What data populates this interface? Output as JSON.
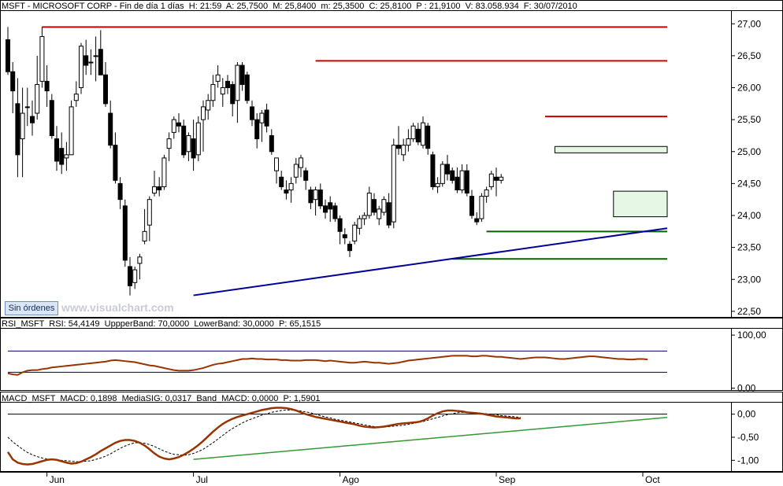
{
  "main_header": "MSFT - MICROSOFT CORP - Fin de día 1 días  H: 21:59  A: 25,7500  M: 25,8400  m: 25,3500  C: 25,8100  P : 21,9100  V: 83.058.934  F: 30/07/2010",
  "rsi_header": "RSI_MSFT  RSI: 54,4149  UppperBand: 70,0000  LowerBand: 30,0000  P: 65,1515",
  "macd_header": "MACD_MSFT  MACD: 0,1898  MediaSIG: 0,0317  Band_MACD: 0,0000  P: 1,5901",
  "button_label": "Sin órdenes",
  "watermark": "www.visualchart.com",
  "colors": {
    "up_candle": "#ffffff",
    "down_candle": "#000000",
    "resistance": "#cc0000",
    "support": "#006600",
    "trendline": "#000099",
    "rsi_line": "#993300",
    "macd_line": "#993300",
    "signal_line": "#000000",
    "macd_trend": "#339933",
    "zone_fill": "#e6f7e6"
  },
  "chart_data": [
    {
      "type": "candlestick",
      "name": "MSFT daily",
      "ylim": [
        22.4,
        27.2
      ],
      "y_ticks": [
        "27,00",
        "26,50",
        "26,00",
        "25,50",
        "25,00",
        "24,50",
        "24,00",
        "23,50",
        "23,00",
        "22,50"
      ],
      "y_tick_values": [
        27.0,
        26.5,
        26.0,
        25.5,
        25.0,
        24.5,
        24.0,
        23.5,
        23.0,
        22.5
      ],
      "x_labels": [
        {
          "label": "Jun",
          "index": 8
        },
        {
          "label": "Jul",
          "index": 38
        },
        {
          "label": "Ago",
          "index": 68
        },
        {
          "label": "Sep",
          "index": 100
        },
        {
          "label": "Oct",
          "index": 130
        }
      ],
      "candles": [
        [
          26.75,
          26.95,
          26.2,
          26.25
        ],
        [
          26.25,
          26.4,
          25.6,
          25.95
        ],
        [
          25.75,
          26.15,
          24.6,
          24.95
        ],
        [
          25.2,
          26.0,
          24.6,
          25.6
        ],
        [
          25.7,
          26.0,
          25.4,
          25.7
        ],
        [
          25.55,
          25.8,
          25.25,
          25.45
        ],
        [
          25.6,
          26.5,
          25.5,
          26.05
        ],
        [
          26.1,
          26.95,
          26.0,
          26.8
        ],
        [
          26.1,
          26.35,
          25.7,
          25.95
        ],
        [
          25.8,
          25.9,
          25.2,
          25.25
        ],
        [
          25.2,
          25.4,
          24.7,
          24.85
        ],
        [
          25.05,
          25.3,
          24.65,
          24.8
        ],
        [
          24.9,
          25.15,
          24.7,
          24.95
        ],
        [
          24.95,
          25.8,
          24.95,
          25.7
        ],
        [
          25.8,
          26.1,
          25.7,
          25.9
        ],
        [
          26.0,
          26.7,
          25.9,
          26.65
        ],
        [
          26.5,
          26.75,
          26.2,
          26.35
        ],
        [
          26.4,
          26.6,
          26.2,
          26.4
        ],
        [
          26.5,
          26.8,
          26.1,
          26.5
        ],
        [
          26.6,
          26.9,
          26.2,
          26.2
        ],
        [
          26.2,
          26.4,
          25.7,
          25.75
        ],
        [
          25.6,
          25.8,
          25.05,
          25.1
        ],
        [
          25.1,
          25.3,
          24.5,
          24.55
        ],
        [
          24.5,
          24.6,
          24.1,
          24.25
        ],
        [
          24.15,
          24.25,
          23.2,
          23.3
        ],
        [
          23.2,
          23.35,
          22.75,
          22.9
        ],
        [
          22.95,
          23.2,
          22.85,
          23.15
        ],
        [
          23.25,
          23.4,
          23.0,
          23.35
        ],
        [
          23.6,
          24.1,
          23.55,
          23.75
        ],
        [
          23.85,
          24.3,
          23.6,
          24.25
        ],
        [
          24.35,
          24.7,
          24.3,
          24.45
        ],
        [
          24.45,
          24.6,
          24.3,
          24.4
        ],
        [
          24.45,
          24.95,
          24.4,
          24.9
        ],
        [
          25.05,
          25.3,
          24.85,
          25.2
        ],
        [
          25.3,
          25.55,
          25.2,
          25.5
        ],
        [
          25.45,
          25.6,
          25.3,
          25.4
        ],
        [
          25.4,
          25.5,
          24.9,
          24.95
        ],
        [
          25.0,
          25.3,
          24.85,
          25.25
        ],
        [
          25.2,
          25.5,
          24.7,
          24.9
        ],
        [
          24.95,
          25.55,
          24.85,
          25.45
        ],
        [
          25.5,
          25.8,
          25.0,
          25.7
        ],
        [
          25.65,
          25.9,
          25.5,
          25.8
        ],
        [
          25.8,
          26.2,
          25.7,
          26.05
        ],
        [
          26.1,
          26.35,
          26.0,
          26.2
        ],
        [
          25.9,
          26.15,
          25.7,
          26.0
        ],
        [
          26.1,
          26.2,
          25.9,
          26.0
        ],
        [
          26.05,
          26.1,
          25.55,
          25.75
        ],
        [
          25.8,
          26.4,
          25.45,
          26.35
        ],
        [
          26.35,
          26.4,
          25.95,
          26.05
        ],
        [
          26.2,
          26.25,
          25.75,
          25.8
        ],
        [
          25.7,
          25.8,
          25.4,
          25.5
        ],
        [
          25.5,
          25.6,
          25.05,
          25.2
        ],
        [
          25.45,
          25.65,
          25.15,
          25.6
        ],
        [
          25.65,
          25.75,
          25.3,
          25.4
        ],
        [
          25.25,
          25.35,
          24.95,
          25.0
        ],
        [
          24.7,
          24.9,
          24.5,
          24.9
        ],
        [
          24.6,
          24.7,
          24.4,
          24.45
        ],
        [
          24.4,
          24.55,
          24.25,
          24.35
        ],
        [
          24.4,
          24.6,
          24.2,
          24.5
        ],
        [
          24.6,
          24.9,
          24.5,
          24.8
        ],
        [
          24.75,
          24.95,
          24.6,
          24.9
        ],
        [
          24.7,
          24.75,
          24.4,
          24.55
        ],
        [
          24.4,
          24.45,
          24.1,
          24.2
        ],
        [
          24.25,
          24.45,
          24.0,
          24.4
        ],
        [
          24.4,
          24.5,
          24.1,
          24.15
        ],
        [
          24.15,
          24.25,
          23.95,
          24.05
        ],
        [
          24.2,
          24.3,
          23.9,
          24.1
        ],
        [
          24.15,
          24.2,
          23.9,
          23.95
        ],
        [
          23.95,
          24.0,
          23.55,
          23.75
        ],
        [
          23.7,
          23.8,
          23.55,
          23.65
        ],
        [
          23.55,
          23.6,
          23.35,
          23.45
        ],
        [
          23.6,
          23.9,
          23.55,
          23.85
        ],
        [
          23.8,
          24.0,
          23.7,
          23.95
        ],
        [
          23.95,
          24.05,
          23.85,
          24.0
        ],
        [
          24.0,
          24.45,
          23.95,
          24.35
        ],
        [
          24.25,
          24.35,
          24.0,
          24.05
        ],
        [
          23.95,
          24.15,
          23.85,
          24.1
        ],
        [
          24.05,
          24.3,
          24.0,
          24.25
        ],
        [
          24.2,
          24.35,
          23.8,
          23.85
        ],
        [
          23.9,
          25.2,
          23.8,
          25.1
        ],
        [
          25.1,
          25.4,
          24.95,
          25.05
        ],
        [
          24.95,
          25.2,
          24.85,
          25.1
        ],
        [
          25.1,
          25.35,
          25.0,
          25.2
        ],
        [
          25.2,
          25.45,
          25.15,
          25.4
        ],
        [
          25.35,
          25.45,
          25.1,
          25.15
        ],
        [
          25.1,
          25.55,
          25.05,
          25.45
        ],
        [
          25.4,
          25.45,
          24.95,
          25.05
        ],
        [
          24.95,
          25.0,
          24.4,
          24.45
        ],
        [
          24.45,
          24.6,
          24.35,
          24.5
        ],
        [
          24.5,
          24.85,
          24.45,
          24.8
        ],
        [
          24.8,
          24.95,
          24.55,
          24.65
        ],
        [
          24.7,
          24.75,
          24.5,
          24.55
        ],
        [
          24.6,
          24.75,
          24.35,
          24.4
        ],
        [
          24.4,
          24.8,
          24.35,
          24.7
        ],
        [
          24.7,
          24.8,
          24.3,
          24.35
        ],
        [
          24.3,
          24.4,
          23.95,
          24.0
        ],
        [
          23.95,
          24.05,
          23.85,
          23.9
        ],
        [
          23.95,
          24.35,
          23.9,
          24.3
        ],
        [
          24.3,
          24.45,
          24.2,
          24.4
        ],
        [
          24.45,
          24.7,
          24.4,
          24.65
        ],
        [
          24.6,
          24.75,
          24.3,
          24.55
        ],
        [
          24.55,
          24.65,
          24.5,
          24.6
        ]
      ],
      "resistance_levels": [
        {
          "from": 7,
          "to": 135,
          "value": 26.95
        },
        {
          "from": 63,
          "to": 135,
          "value": 26.42
        },
        {
          "from": 110,
          "to": 135,
          "value": 25.55
        }
      ],
      "support_levels": [
        {
          "from": 98,
          "to": 135,
          "value": 23.75
        },
        {
          "from": 91,
          "to": 135,
          "value": 23.32
        }
      ],
      "trendline": {
        "from": [
          38,
          22.75
        ],
        "to": [
          135,
          23.8
        ]
      },
      "zones": [
        {
          "from": 112,
          "to": 135,
          "low": 24.98,
          "high": 25.08
        },
        {
          "from": 124,
          "to": 135,
          "low": 23.98,
          "high": 24.38
        }
      ]
    },
    {
      "type": "line",
      "name": "RSI_MSFT",
      "ylim": [
        -5,
        112
      ],
      "y_ticks": [
        "100,00",
        "0,00"
      ],
      "y_tick_values": [
        100,
        0
      ],
      "bands": [
        70,
        30
      ],
      "values": [
        28,
        26,
        25,
        30,
        33,
        34,
        34,
        36,
        37,
        39,
        40,
        41,
        42,
        43,
        44,
        45,
        46,
        47,
        48,
        49,
        50,
        52,
        53,
        52,
        51,
        50,
        49,
        47,
        45,
        43,
        42,
        40,
        38,
        36,
        34,
        33,
        33,
        33,
        34,
        36,
        38,
        41,
        44,
        46,
        47,
        49,
        51,
        53,
        55,
        55,
        56,
        55,
        55,
        54,
        54,
        54,
        53,
        53,
        52,
        52,
        52,
        53,
        53,
        53,
        52,
        51,
        52,
        51,
        50,
        49,
        48,
        48,
        49,
        50,
        49,
        48,
        48,
        47,
        46,
        47,
        48,
        50,
        52,
        53,
        54,
        55,
        56,
        57,
        58,
        59,
        60,
        61,
        61,
        61,
        61,
        60,
        60,
        61,
        61,
        60,
        59,
        59,
        58,
        57,
        56,
        55,
        56,
        57,
        58,
        58,
        58,
        57,
        56,
        55,
        55,
        56,
        57,
        58,
        59,
        60,
        60,
        59,
        58,
        57,
        56,
        55,
        55,
        54,
        54,
        55,
        55,
        54
      ]
    },
    {
      "type": "line",
      "name": "MACD_MSFT",
      "ylim": [
        -1.25,
        0.25
      ],
      "y_ticks": [
        "0,00",
        "-0,50",
        "-1,00"
      ],
      "y_tick_values": [
        0,
        -0.5,
        -1.0
      ],
      "macd": [
        -0.82,
        -0.98,
        -1.05,
        -1.08,
        -1.09,
        -1.08,
        -1.05,
        -1.02,
        -0.99,
        -0.98,
        -0.99,
        -1.02,
        -1.05,
        -1.07,
        -1.06,
        -1.03,
        -0.98,
        -0.93,
        -0.87,
        -0.8,
        -0.74,
        -0.68,
        -0.62,
        -0.58,
        -0.56,
        -0.56,
        -0.58,
        -0.62,
        -0.68,
        -0.76,
        -0.85,
        -0.92,
        -0.96,
        -0.98,
        -0.96,
        -0.93,
        -0.88,
        -0.82,
        -0.75,
        -0.67,
        -0.58,
        -0.48,
        -0.38,
        -0.29,
        -0.21,
        -0.15,
        -0.1,
        -0.06,
        -0.03,
        0.0,
        0.03,
        0.06,
        0.09,
        0.11,
        0.13,
        0.14,
        0.14,
        0.13,
        0.11,
        0.08,
        0.04,
        0.0,
        -0.03,
        -0.06,
        -0.08,
        -0.1,
        -0.12,
        -0.14,
        -0.16,
        -0.18,
        -0.2,
        -0.22,
        -0.25,
        -0.27,
        -0.28,
        -0.29,
        -0.28,
        -0.27,
        -0.25,
        -0.23,
        -0.21,
        -0.2,
        -0.19,
        -0.18,
        -0.17,
        -0.14,
        -0.09,
        -0.03,
        0.02,
        0.06,
        0.08,
        0.08,
        0.07,
        0.06,
        0.04,
        0.03,
        0.02,
        0.01,
        -0.01,
        -0.03,
        -0.05,
        -0.06,
        -0.07,
        -0.08,
        -0.09,
        -0.09
      ],
      "signal": [
        -0.5,
        -0.6,
        -0.68,
        -0.76,
        -0.83,
        -0.88,
        -0.92,
        -0.95,
        -0.97,
        -0.98,
        -0.99,
        -1.0,
        -1.01,
        -1.02,
        -1.03,
        -1.03,
        -1.02,
        -1.01,
        -0.98,
        -0.95,
        -0.91,
        -0.86,
        -0.8,
        -0.74,
        -0.69,
        -0.65,
        -0.62,
        -0.62,
        -0.63,
        -0.66,
        -0.7,
        -0.75,
        -0.8,
        -0.84,
        -0.87,
        -0.88,
        -0.89,
        -0.88,
        -0.85,
        -0.81,
        -0.76,
        -0.69,
        -0.62,
        -0.54,
        -0.46,
        -0.38,
        -0.31,
        -0.25,
        -0.19,
        -0.14,
        -0.1,
        -0.06,
        -0.02,
        0.01,
        0.04,
        0.06,
        0.08,
        0.09,
        0.09,
        0.08,
        0.07,
        0.05,
        0.03,
        0.0,
        -0.03,
        -0.06,
        -0.08,
        -0.11,
        -0.13,
        -0.15,
        -0.17,
        -0.19,
        -0.21,
        -0.23,
        -0.25,
        -0.27,
        -0.28,
        -0.28,
        -0.27,
        -0.26,
        -0.25,
        -0.24,
        -0.22,
        -0.2,
        -0.18,
        -0.16,
        -0.13,
        -0.1,
        -0.07,
        -0.04,
        -0.01,
        0.01,
        0.03,
        0.04,
        0.04,
        0.04,
        0.03,
        0.02,
        0.01,
        0.0,
        -0.01,
        -0.03,
        -0.04,
        -0.05,
        -0.06,
        -0.07
      ],
      "trendline": {
        "from": [
          38,
          -0.98
        ],
        "to": [
          135,
          -0.07
        ]
      }
    }
  ]
}
